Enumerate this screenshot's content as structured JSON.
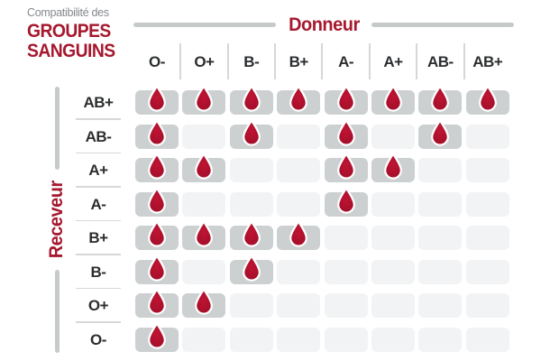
{
  "title": {
    "eyebrow": "Compatibilité des",
    "line1": "GROUPES",
    "line2": "SANGUINS"
  },
  "axes": {
    "donor_label": "Donneur",
    "receiver_label": "Receveur"
  },
  "colors": {
    "accent_red": "#a6182e",
    "drop_red_center": "#c01434",
    "drop_red_edge": "#a00e28",
    "cell_filled": "#cdd0d1",
    "cell_empty": "#f2f3f4",
    "axis_bar_gray": "#c7cacb",
    "separator_gray": "#d5d7d8",
    "label_dark": "#2b2d2f",
    "eyebrow_gray": "#85898c"
  },
  "icons": {
    "compatible_marker": "blood-drop-icon"
  },
  "chart_data": {
    "type": "heatmap",
    "title": "Compatibilité des groupes sanguins",
    "xlabel": "Donneur",
    "ylabel": "Receveur",
    "columns": [
      "O-",
      "O+",
      "B-",
      "B+",
      "A-",
      "A+",
      "AB-",
      "AB+"
    ],
    "rows": [
      "AB+",
      "AB-",
      "A+",
      "A-",
      "B+",
      "B-",
      "O+",
      "O-"
    ],
    "matrix": [
      [
        1,
        1,
        1,
        1,
        1,
        1,
        1,
        1
      ],
      [
        1,
        0,
        1,
        0,
        1,
        0,
        1,
        0
      ],
      [
        1,
        1,
        0,
        0,
        1,
        1,
        0,
        0
      ],
      [
        1,
        0,
        0,
        0,
        1,
        0,
        0,
        0
      ],
      [
        1,
        1,
        1,
        1,
        0,
        0,
        0,
        0
      ],
      [
        1,
        0,
        1,
        0,
        0,
        0,
        0,
        0
      ],
      [
        1,
        1,
        0,
        0,
        0,
        0,
        0,
        0
      ],
      [
        1,
        0,
        0,
        0,
        0,
        0,
        0,
        0
      ]
    ],
    "legend": "1 = drop icon shown (donor compatible with receiver), 0 = empty cell",
    "compatible": {
      "AB+": [
        "O-",
        "O+",
        "B-",
        "B+",
        "A-",
        "A+",
        "AB-",
        "AB+"
      ],
      "AB-": [
        "O-",
        "B-",
        "A-",
        "AB-"
      ],
      "A+": [
        "O-",
        "O+",
        "A-",
        "A+"
      ],
      "A-": [
        "O-",
        "A-"
      ],
      "B+": [
        "O-",
        "O+",
        "B-",
        "B+"
      ],
      "B-": [
        "O-",
        "B-"
      ],
      "O+": [
        "O-",
        "O+"
      ],
      "O-": [
        "O-"
      ]
    }
  }
}
